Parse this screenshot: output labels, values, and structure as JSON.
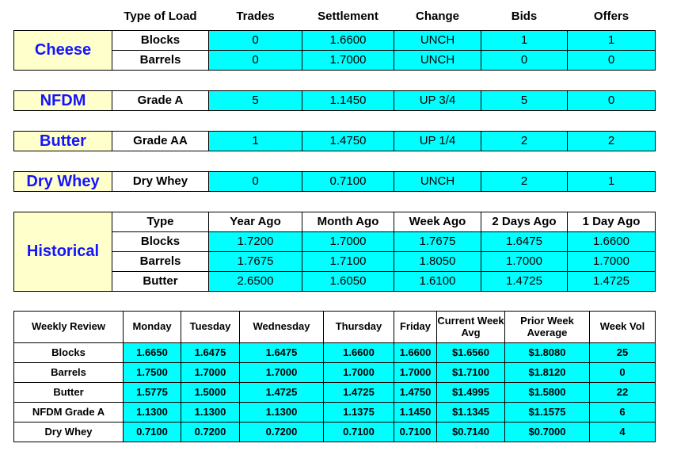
{
  "top": {
    "columns": [
      "Type of Load",
      "Trades",
      "Settlement",
      "Change",
      "Bids",
      "Offers"
    ],
    "groups": [
      {
        "label": "Cheese",
        "rows": [
          [
            "Blocks",
            "0",
            "1.6600",
            "UNCH",
            "1",
            "1"
          ],
          [
            "Barrels",
            "0",
            "1.7000",
            "UNCH",
            "0",
            "0"
          ]
        ]
      },
      {
        "label": "NFDM",
        "rows": [
          [
            "Grade A",
            "5",
            "1.1450",
            "UP 3/4",
            "5",
            "0"
          ]
        ]
      },
      {
        "label": "Butter",
        "rows": [
          [
            "Grade AA",
            "1",
            "1.4750",
            "UP 1/4",
            "2",
            "2"
          ]
        ]
      },
      {
        "label": "Dry Whey",
        "rows": [
          [
            "Dry Whey",
            "0",
            "0.7100",
            "UNCH",
            "2",
            "1"
          ]
        ]
      }
    ]
  },
  "historical": {
    "label": "Historical",
    "columns": [
      "Type",
      "Year Ago",
      "Month Ago",
      "Week Ago",
      "2 Days Ago",
      "1 Day Ago"
    ],
    "rows": [
      [
        "Blocks",
        "1.7200",
        "1.7000",
        "1.7675",
        "1.6475",
        "1.6600"
      ],
      [
        "Barrels",
        "1.7675",
        "1.7100",
        "1.8050",
        "1.7000",
        "1.7000"
      ],
      [
        "Butter",
        "2.6500",
        "1.6050",
        "1.6100",
        "1.4725",
        "1.4725"
      ]
    ]
  },
  "weekly": {
    "columns": [
      "Weekly Review",
      "Monday",
      "Tuesday",
      "Wednesday",
      "Thursday",
      "Friday",
      "Current Week Avg",
      "Prior Week Average",
      "Week Vol"
    ],
    "rows": [
      [
        "Blocks",
        "1.6650",
        "1.6475",
        "1.6475",
        "1.6600",
        "1.6600",
        "$1.6560",
        "$1.8080",
        "25"
      ],
      [
        "Barrels",
        "1.7500",
        "1.7000",
        "1.7000",
        "1.7000",
        "1.7000",
        "$1.7100",
        "$1.8120",
        "0"
      ],
      [
        "Butter",
        "1.5775",
        "1.5000",
        "1.4725",
        "1.4725",
        "1.4750",
        "$1.4995",
        "$1.5800",
        "22"
      ],
      [
        "NFDM Grade A",
        "1.1300",
        "1.1300",
        "1.1300",
        "1.1375",
        "1.1450",
        "$1.1345",
        "$1.1575",
        "6"
      ],
      [
        "Dry Whey",
        "0.7100",
        "0.7200",
        "0.7200",
        "0.7100",
        "0.7100",
        "$0.7140",
        "$0.7000",
        "4"
      ]
    ]
  }
}
